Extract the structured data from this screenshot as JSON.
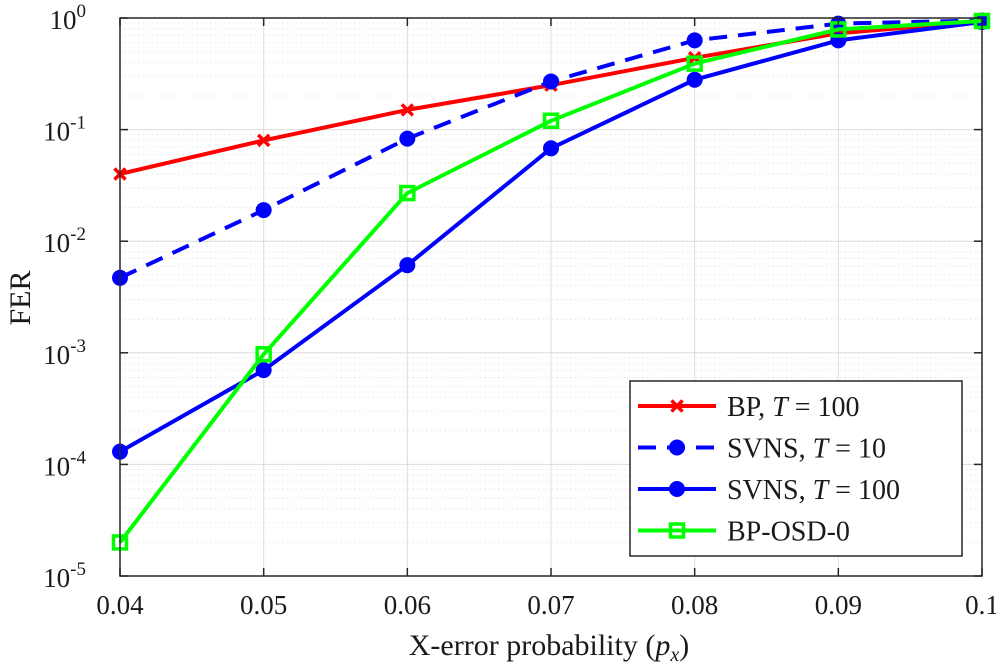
{
  "chart_data": {
    "type": "line",
    "xlabel": {
      "main": "X-error probability (",
      "var": "p",
      "sub": "x",
      "end": ")"
    },
    "ylabel": "FER",
    "yscale": "log",
    "xlim": [
      0.04,
      0.1
    ],
    "ylim": [
      1e-05,
      1
    ],
    "x_ticks": [
      0.04,
      0.05,
      0.06,
      0.07,
      0.08,
      0.09,
      0.1
    ],
    "x_tick_labels": [
      "0.04",
      "0.05",
      "0.06",
      "0.07",
      "0.08",
      "0.09",
      "0.1"
    ],
    "y_ticks": [
      {
        "value": 1,
        "base": "10",
        "exp": "0"
      },
      {
        "value": 0.1,
        "base": "10",
        "exp": "-1"
      },
      {
        "value": 0.01,
        "base": "10",
        "exp": "-2"
      },
      {
        "value": 0.001,
        "base": "10",
        "exp": "-3"
      },
      {
        "value": 0.0001,
        "base": "10",
        "exp": "-4"
      },
      {
        "value": 1e-05,
        "base": "10",
        "exp": "-5"
      }
    ],
    "grid": true,
    "legend_position": "bottom-right",
    "series": [
      {
        "name": "BP, T = 100",
        "label_prefix": "BP, ",
        "label_var": "T",
        "label_suffix": " = 100",
        "color": "#ff0000",
        "marker": "x",
        "dashed": false,
        "x": [
          0.04,
          0.05,
          0.06,
          0.07,
          0.08,
          0.09,
          0.1
        ],
        "y": [
          0.04,
          0.08,
          0.15,
          0.25,
          0.44,
          0.73,
          0.93
        ]
      },
      {
        "name": "SVNS, T = 10",
        "label_prefix": "SVNS, ",
        "label_var": "T",
        "label_suffix": " = 10",
        "color": "#0000ff",
        "marker": "circle",
        "dashed": true,
        "x": [
          0.04,
          0.05,
          0.06,
          0.07,
          0.08,
          0.09,
          0.1
        ],
        "y": [
          0.0047,
          0.019,
          0.083,
          0.27,
          0.63,
          0.89,
          0.95
        ]
      },
      {
        "name": "SVNS, T = 100",
        "label_prefix": "SVNS, ",
        "label_var": "T",
        "label_suffix": " = 100",
        "color": "#0000ff",
        "marker": "circle",
        "dashed": false,
        "x": [
          0.04,
          0.05,
          0.06,
          0.07,
          0.08,
          0.09,
          0.1
        ],
        "y": [
          0.00013,
          0.0007,
          0.0061,
          0.068,
          0.28,
          0.63,
          0.92
        ]
      },
      {
        "name": "BP-OSD-0",
        "label_prefix": "BP-OSD-0",
        "label_var": "",
        "label_suffix": "",
        "color": "#00ff00",
        "marker": "square",
        "dashed": false,
        "x": [
          0.04,
          0.05,
          0.06,
          0.07,
          0.08,
          0.09,
          0.1
        ],
        "y": [
          2e-05,
          0.00097,
          0.027,
          0.12,
          0.39,
          0.79,
          0.94
        ]
      }
    ]
  }
}
